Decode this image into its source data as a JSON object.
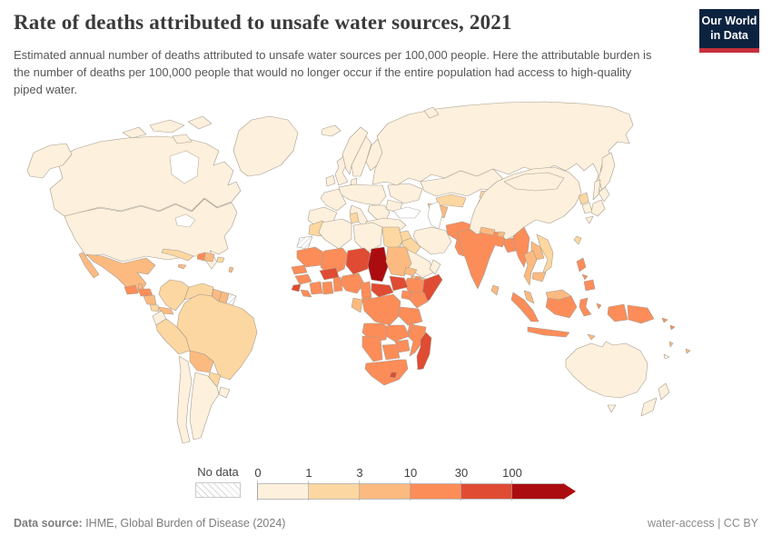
{
  "header": {
    "title": "Rate of deaths attributed to unsafe water sources, 2021",
    "subtitle": "Estimated annual number of deaths attributed to unsafe water sources per 100,000 people. Here the attributable burden is the number of deaths per 100,000 people that would no longer occur if the entire population had access to high-quality piped water.",
    "logo": {
      "line1": "Our World",
      "line2": "in Data",
      "bg": "#0c2340",
      "accent": "#c72f3d"
    }
  },
  "map": {
    "border_color": "#a79d90",
    "water_color": "#ffffff",
    "no_data_label": "No data",
    "bands": [
      {
        "id": "b0",
        "tick": "0",
        "color": "#fdf0dc"
      },
      {
        "id": "b1",
        "tick": "1",
        "color": "#fdd7a1"
      },
      {
        "id": "b2",
        "tick": "3",
        "color": "#fcba80"
      },
      {
        "id": "b3",
        "tick": "10",
        "color": "#fc8d59"
      },
      {
        "id": "b4",
        "tick": "30",
        "color": "#e04b33"
      },
      {
        "id": "b5",
        "tick": "100",
        "color": "#ab0c10"
      }
    ],
    "countries": [
      {
        "id": "canada",
        "name": "Canada",
        "band": "b0"
      },
      {
        "id": "usa",
        "name": "United States",
        "band": "b0"
      },
      {
        "id": "greenland",
        "name": "Greenland",
        "band": "b0"
      },
      {
        "id": "mexico",
        "name": "Mexico",
        "band": "b2"
      },
      {
        "id": "belize",
        "name": "Belize",
        "band": "b2"
      },
      {
        "id": "guatemala",
        "name": "Guatemala",
        "band": "b3"
      },
      {
        "id": "honduras",
        "name": "Honduras",
        "band": "b3"
      },
      {
        "id": "nicaragua",
        "name": "Nicaragua",
        "band": "b2"
      },
      {
        "id": "costa-rica",
        "name": "Costa Rica",
        "band": "b1"
      },
      {
        "id": "panama",
        "name": "Panama",
        "band": "b2"
      },
      {
        "id": "cuba",
        "name": "Cuba",
        "band": "b1"
      },
      {
        "id": "jamaica",
        "name": "Jamaica",
        "band": "b2"
      },
      {
        "id": "haiti",
        "name": "Haiti",
        "band": "b3"
      },
      {
        "id": "dominican-republic",
        "name": "Dominican Republic",
        "band": "b2"
      },
      {
        "id": "puerto-rico",
        "name": "Puerto Rico",
        "band": "b1"
      },
      {
        "id": "antilles",
        "name": "Lesser Antilles",
        "band": "b2"
      },
      {
        "id": "colombia",
        "name": "Colombia",
        "band": "b1"
      },
      {
        "id": "venezuela",
        "name": "Venezuela",
        "band": "b1"
      },
      {
        "id": "guyana",
        "name": "Guyana",
        "band": "b2"
      },
      {
        "id": "suriname",
        "name": "Suriname",
        "band": "b2"
      },
      {
        "id": "french-guiana",
        "name": "French Guiana",
        "band": "nodata"
      },
      {
        "id": "ecuador",
        "name": "Ecuador",
        "band": "b0"
      },
      {
        "id": "peru",
        "name": "Peru",
        "band": "b1"
      },
      {
        "id": "brazil",
        "name": "Brazil",
        "band": "b1"
      },
      {
        "id": "bolivia",
        "name": "Bolivia",
        "band": "b2"
      },
      {
        "id": "paraguay",
        "name": "Paraguay",
        "band": "b1"
      },
      {
        "id": "uruguay",
        "name": "Uruguay",
        "band": "b0"
      },
      {
        "id": "argentina",
        "name": "Argentina",
        "band": "b0"
      },
      {
        "id": "chile",
        "name": "Chile",
        "band": "b0"
      },
      {
        "id": "iceland",
        "name": "Iceland",
        "band": "b0"
      },
      {
        "id": "ireland",
        "name": "Ireland",
        "band": "b0"
      },
      {
        "id": "uk",
        "name": "United Kingdom",
        "band": "b0"
      },
      {
        "id": "norway",
        "name": "Norway",
        "band": "b0"
      },
      {
        "id": "sweden",
        "name": "Sweden",
        "band": "b0"
      },
      {
        "id": "finland",
        "name": "Finland",
        "band": "b0"
      },
      {
        "id": "denmark",
        "name": "Denmark",
        "band": "b0"
      },
      {
        "id": "baltics",
        "name": "Baltic states",
        "band": "b0"
      },
      {
        "id": "central-europe",
        "name": "Central Europe",
        "band": "b0"
      },
      {
        "id": "france",
        "name": "France",
        "band": "b0"
      },
      {
        "id": "iberia",
        "name": "Spain and Portugal",
        "band": "b0"
      },
      {
        "id": "italy",
        "name": "Italy",
        "band": "b0"
      },
      {
        "id": "balkans",
        "name": "Balkans",
        "band": "b0"
      },
      {
        "id": "greece",
        "name": "Greece",
        "band": "b0"
      },
      {
        "id": "ukraine",
        "name": "Ukraine",
        "band": "b0"
      },
      {
        "id": "romania",
        "name": "Romania",
        "band": "b0"
      },
      {
        "id": "russia",
        "name": "Russia",
        "band": "b0"
      },
      {
        "id": "kazakhstan",
        "name": "Kazakhstan",
        "band": "b0"
      },
      {
        "id": "uzbekistan",
        "name": "Uzbekistan",
        "band": "b1"
      },
      {
        "id": "turkmenistan",
        "name": "Turkmenistan",
        "band": "b2"
      },
      {
        "id": "kyrgyzstan",
        "name": "Kyrgyzstan",
        "band": "b1"
      },
      {
        "id": "tajikistan",
        "name": "Tajikistan",
        "band": "b2"
      },
      {
        "id": "turkey",
        "name": "Turkey",
        "band": "b0"
      },
      {
        "id": "syria",
        "name": "Syria",
        "band": "b1"
      },
      {
        "id": "iraq",
        "name": "Iraq",
        "band": "b1"
      },
      {
        "id": "iran",
        "name": "Iran",
        "band": "b0"
      },
      {
        "id": "afghanistan",
        "name": "Afghanistan",
        "band": "b3"
      },
      {
        "id": "pakistan",
        "name": "Pakistan",
        "band": "b3"
      },
      {
        "id": "saudi-arabia",
        "name": "Saudi Arabia",
        "band": "b0"
      },
      {
        "id": "yemen",
        "name": "Yemen",
        "band": "b2"
      },
      {
        "id": "oman",
        "name": "Oman",
        "band": "b0"
      },
      {
        "id": "jordan",
        "name": "Jordan",
        "band": "b0"
      },
      {
        "id": "morocco",
        "name": "Morocco",
        "band": "b1"
      },
      {
        "id": "western-sahara",
        "name": "Western Sahara",
        "band": "nodata"
      },
      {
        "id": "algeria",
        "name": "Algeria",
        "band": "b0"
      },
      {
        "id": "tunisia",
        "name": "Tunisia",
        "band": "b1"
      },
      {
        "id": "libya",
        "name": "Libya",
        "band": "b0"
      },
      {
        "id": "egypt",
        "name": "Egypt",
        "band": "b1"
      },
      {
        "id": "mauritania",
        "name": "Mauritania",
        "band": "b3"
      },
      {
        "id": "mali",
        "name": "Mali",
        "band": "b3"
      },
      {
        "id": "niger",
        "name": "Niger",
        "band": "b4"
      },
      {
        "id": "chad",
        "name": "Chad",
        "band": "b5"
      },
      {
        "id": "sudan",
        "name": "Sudan",
        "band": "b2"
      },
      {
        "id": "eritrea",
        "name": "Eritrea",
        "band": "b2"
      },
      {
        "id": "djibouti",
        "name": "Djibouti",
        "band": "b3"
      },
      {
        "id": "ethiopia",
        "name": "Ethiopia",
        "band": "b3"
      },
      {
        "id": "somalia",
        "name": "Somalia",
        "band": "b4"
      },
      {
        "id": "senegal",
        "name": "Senegal",
        "band": "b3"
      },
      {
        "id": "guinea",
        "name": "Guinea",
        "band": "b3"
      },
      {
        "id": "sierra-leone",
        "name": "Sierra Leone",
        "band": "b4"
      },
      {
        "id": "liberia",
        "name": "Liberia",
        "band": "b3"
      },
      {
        "id": "cote-divoire",
        "name": "Cote d'Ivoire",
        "band": "b3"
      },
      {
        "id": "ghana",
        "name": "Ghana",
        "band": "b3"
      },
      {
        "id": "togo-benin",
        "name": "Togo and Benin",
        "band": "b3"
      },
      {
        "id": "burkina-faso",
        "name": "Burkina Faso",
        "band": "b4"
      },
      {
        "id": "nigeria",
        "name": "Nigeria",
        "band": "b3"
      },
      {
        "id": "cameroon",
        "name": "Cameroon",
        "band": "b3"
      },
      {
        "id": "central-african-republic",
        "name": "Central African Republic",
        "band": "b4"
      },
      {
        "id": "south-sudan",
        "name": "South Sudan",
        "band": "b4"
      },
      {
        "id": "uganda",
        "name": "Uganda",
        "band": "b3"
      },
      {
        "id": "kenya",
        "name": "Kenya",
        "band": "b3"
      },
      {
        "id": "drc",
        "name": "Democratic Republic of Congo",
        "band": "b3"
      },
      {
        "id": "gabon-congo",
        "name": "Gabon and Congo",
        "band": "b2"
      },
      {
        "id": "tanzania",
        "name": "Tanzania",
        "band": "b3"
      },
      {
        "id": "angola",
        "name": "Angola",
        "band": "b3"
      },
      {
        "id": "zambia",
        "name": "Zambia",
        "band": "b3"
      },
      {
        "id": "malawi",
        "name": "Malawi",
        "band": "b3"
      },
      {
        "id": "mozambique",
        "name": "Mozambique",
        "band": "b3"
      },
      {
        "id": "zimbabwe",
        "name": "Zimbabwe",
        "band": "b3"
      },
      {
        "id": "botswana",
        "name": "Botswana",
        "band": "b3"
      },
      {
        "id": "namibia",
        "name": "Namibia",
        "band": "b3"
      },
      {
        "id": "south-africa",
        "name": "South Africa",
        "band": "b3"
      },
      {
        "id": "lesotho",
        "name": "Lesotho",
        "band": "b4"
      },
      {
        "id": "madagascar",
        "name": "Madagascar",
        "band": "b4"
      },
      {
        "id": "india",
        "name": "India",
        "band": "b3"
      },
      {
        "id": "nepal",
        "name": "Nepal",
        "band": "b2"
      },
      {
        "id": "bhutan",
        "name": "Bhutan",
        "band": "b2"
      },
      {
        "id": "bangladesh",
        "name": "Bangladesh",
        "band": "b3"
      },
      {
        "id": "sri-lanka",
        "name": "Sri Lanka",
        "band": "b2"
      },
      {
        "id": "china",
        "name": "China",
        "band": "b0"
      },
      {
        "id": "mongolia",
        "name": "Mongolia",
        "band": "b0"
      },
      {
        "id": "north-korea",
        "name": "North Korea",
        "band": "b1"
      },
      {
        "id": "south-korea",
        "name": "South Korea",
        "band": "b0"
      },
      {
        "id": "japan",
        "name": "Japan",
        "band": "b0"
      },
      {
        "id": "taiwan",
        "name": "Taiwan",
        "band": "b1"
      },
      {
        "id": "myanmar",
        "name": "Myanmar",
        "band": "b3"
      },
      {
        "id": "thailand",
        "name": "Thailand",
        "band": "b2"
      },
      {
        "id": "laos",
        "name": "Laos",
        "band": "b2"
      },
      {
        "id": "vietnam",
        "name": "Vietnam",
        "band": "b1"
      },
      {
        "id": "cambodia",
        "name": "Cambodia",
        "band": "b2"
      },
      {
        "id": "malaysia",
        "name": "Malaysia",
        "band": "b2"
      },
      {
        "id": "indonesia",
        "name": "Indonesia",
        "band": "b3"
      },
      {
        "id": "timor-leste",
        "name": "Timor-Leste",
        "band": "b2"
      },
      {
        "id": "philippines",
        "name": "Philippines",
        "band": "b3"
      },
      {
        "id": "png",
        "name": "Papua New Guinea",
        "band": "b3"
      },
      {
        "id": "solomon-islands",
        "name": "Solomon Islands",
        "band": "b3"
      },
      {
        "id": "vanuatu",
        "name": "Vanuatu",
        "band": "b2"
      },
      {
        "id": "fiji",
        "name": "Fiji",
        "band": "b2"
      },
      {
        "id": "new-caledonia",
        "name": "New Caledonia",
        "band": "b0"
      },
      {
        "id": "australia",
        "name": "Australia",
        "band": "b0"
      },
      {
        "id": "new-zealand",
        "name": "New Zealand",
        "band": "b0"
      }
    ]
  },
  "footer": {
    "source_label": "Data source:",
    "source": " IHME, Global Burden of Disease (2024)",
    "license": "water-access | CC BY"
  }
}
